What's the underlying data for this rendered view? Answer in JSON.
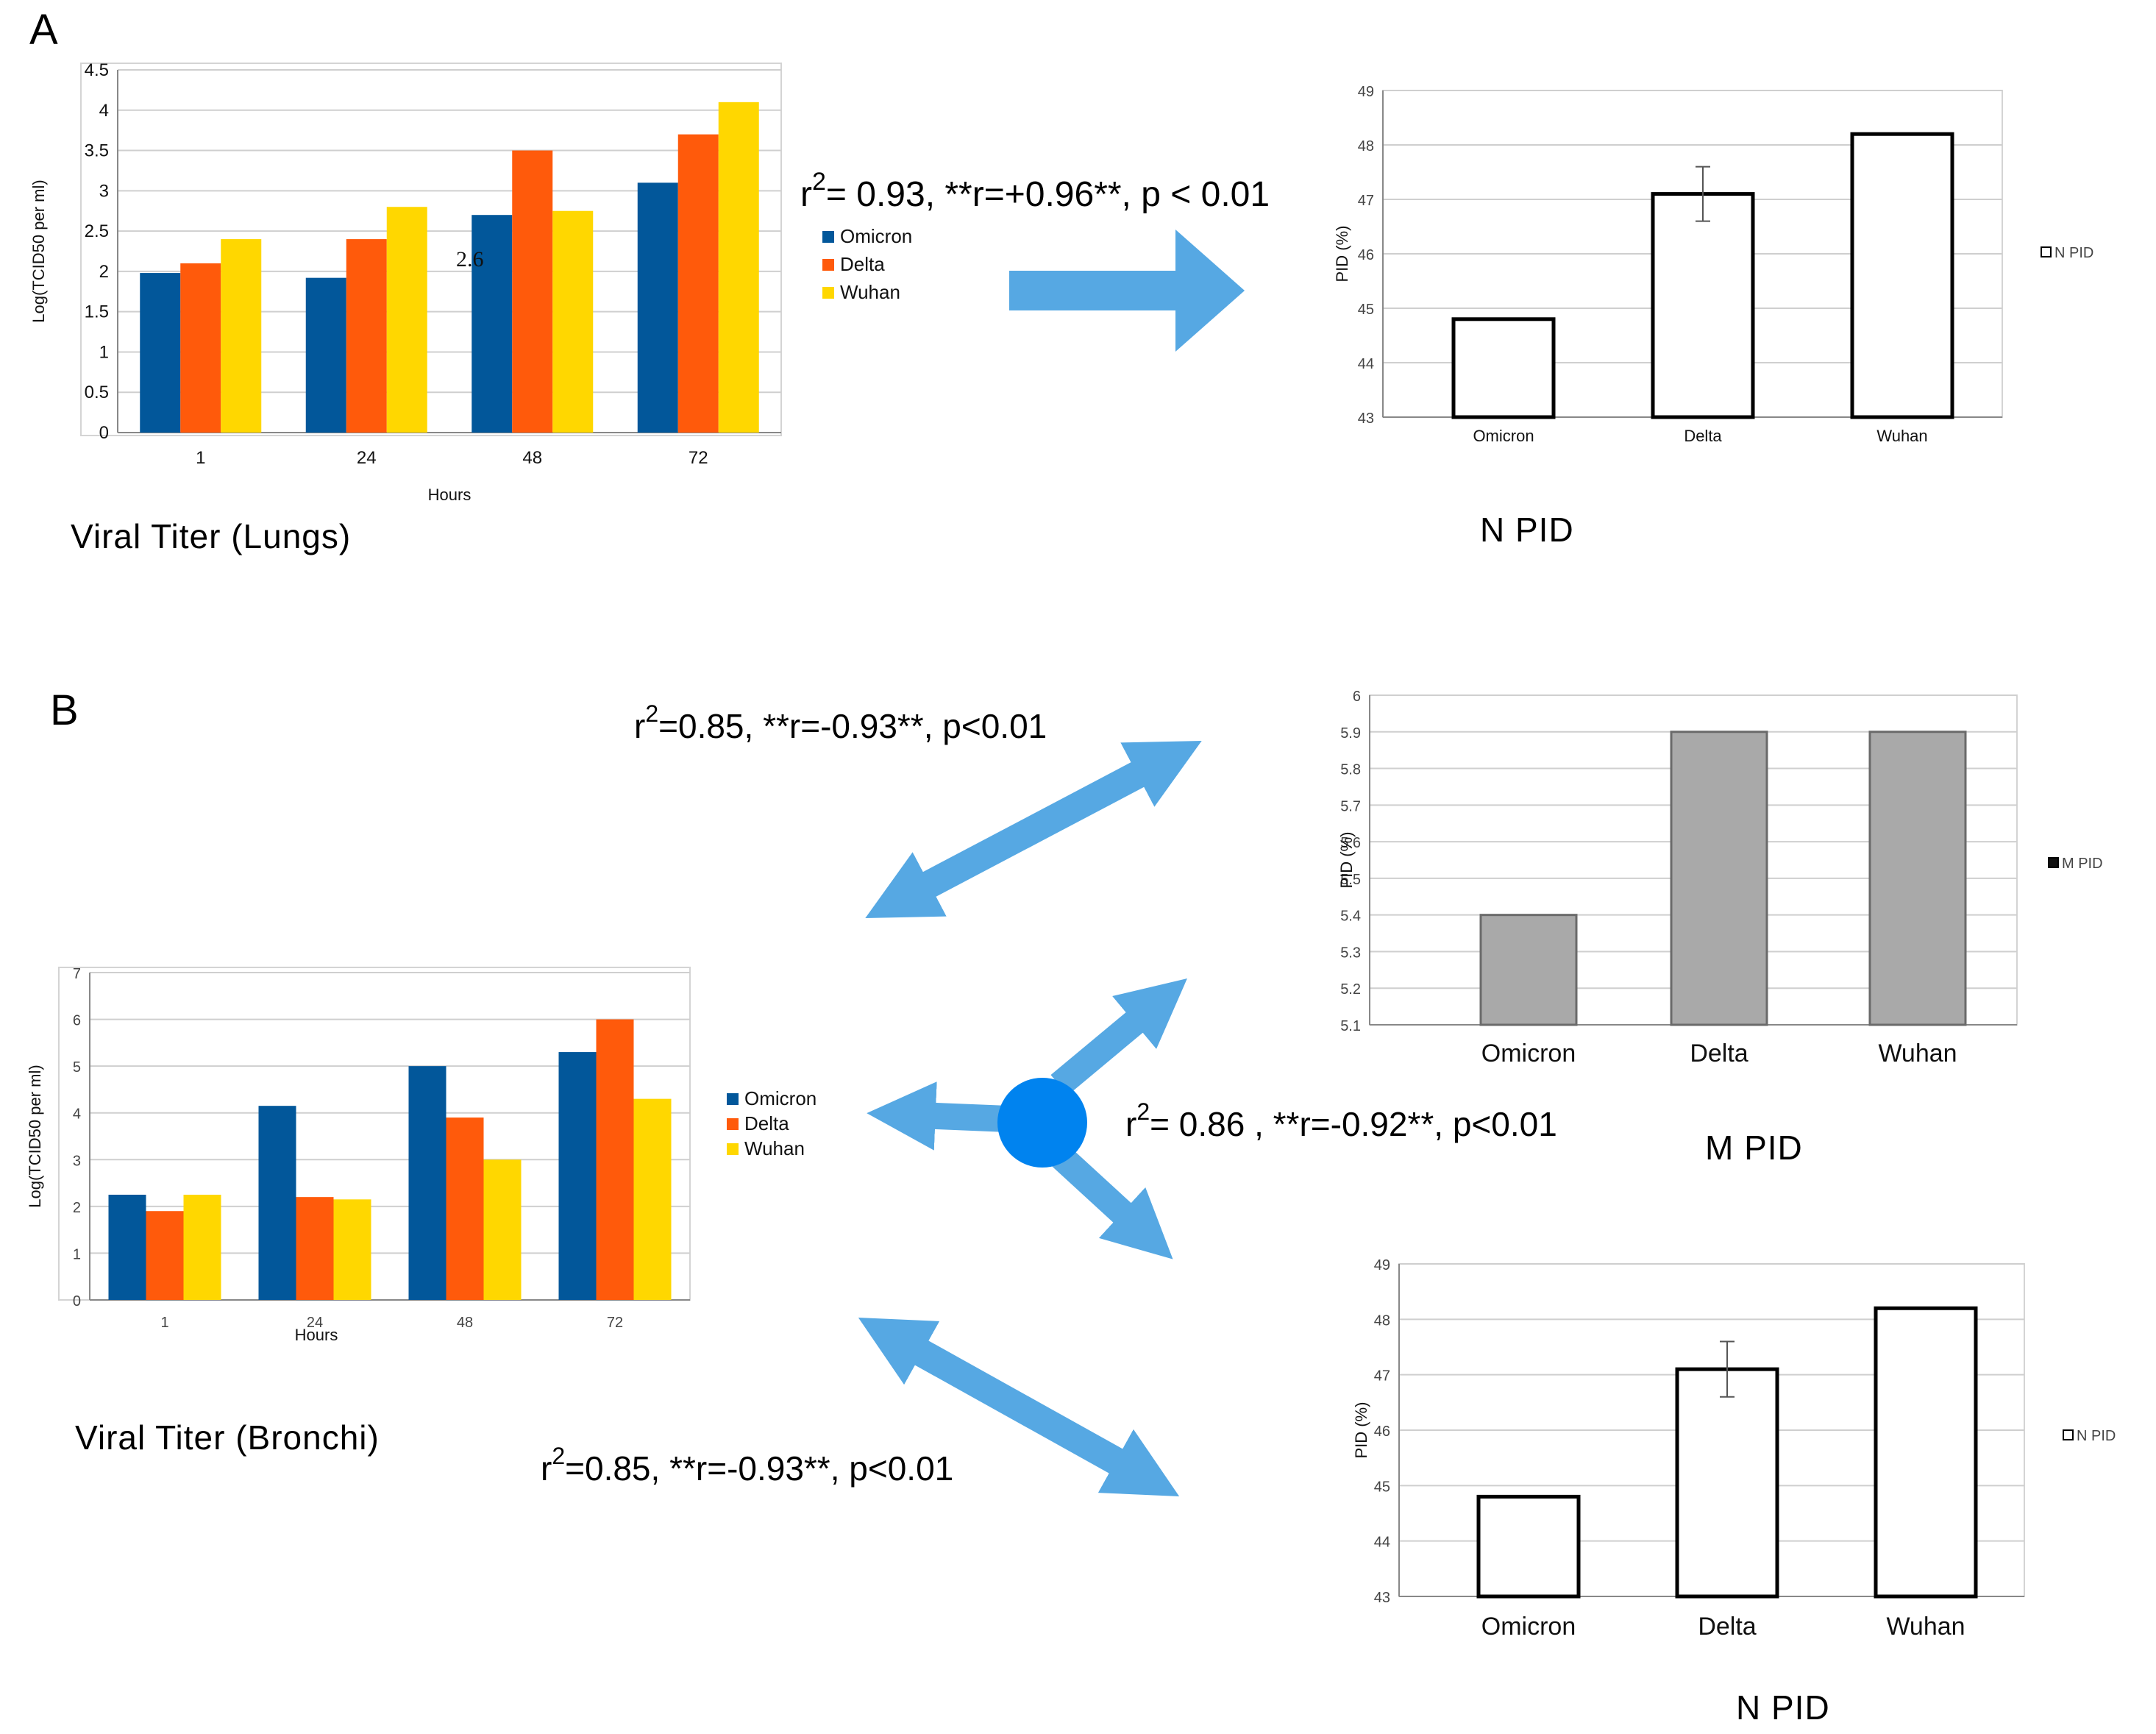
{
  "colors": {
    "omicron": "#02579a",
    "delta": "#ff5a0b",
    "wuhan": "#ffd700",
    "arrow": "#56a8e3",
    "dot": "#0083ef",
    "m_bar": "#a9a9a9"
  },
  "panel_a": {
    "letter": "A",
    "caption": "Viral Titer  (Lungs)",
    "annotation": "2.6",
    "stat": {
      "pre": "r",
      "sup": "2",
      "post": "=  0.93, **r=+0.96**,  p < 0.01"
    },
    "npid_caption": "N PID"
  },
  "panel_b": {
    "letter": "B",
    "caption": "Viral Titer (Bronchi)",
    "stat_top": {
      "pre": "r",
      "sup": "2",
      "post": "=0.85,  **r=-0.93**, p<0.01"
    },
    "stat_mid": {
      "pre": "r",
      "sup": "2",
      "post": "= 0.86 , **r=-0.92**, p<0.01"
    },
    "stat_bottom": {
      "pre": "r",
      "sup": "2",
      "post": "=0.85,  **r=-0.93**, p<0.01"
    },
    "mpid_caption": "M PID",
    "npid_caption": "N PID"
  },
  "chart_data": [
    {
      "id": "lungs",
      "type": "bar",
      "categories": [
        "1",
        "24",
        "48",
        "72"
      ],
      "series": [
        {
          "name": "Omicron",
          "values": [
            1.98,
            1.92,
            2.7,
            3.1
          ]
        },
        {
          "name": "Delta",
          "values": [
            2.1,
            2.4,
            3.5,
            3.7
          ]
        },
        {
          "name": "Wuhan",
          "values": [
            2.4,
            2.8,
            2.75,
            4.1
          ]
        }
      ],
      "yticks": [
        "0",
        "0.5",
        "1",
        "1.5",
        "2",
        "2.5",
        "3",
        "3.5",
        "4",
        "4.5"
      ],
      "ylim": [
        0,
        4.5
      ],
      "xlabel": "Hours",
      "ylabel": "Log(TCID50 per ml)",
      "legend": "right",
      "grid": true
    },
    {
      "id": "npid_top",
      "type": "bar",
      "categories": [
        "Omicron",
        "Delta",
        "Wuhan"
      ],
      "series": [
        {
          "name": "N PID",
          "values": [
            44.8,
            47.1,
            48.2
          ],
          "error": [
            0,
            0.5,
            0
          ]
        }
      ],
      "yticks": [
        "43",
        "44",
        "45",
        "46",
        "47",
        "48",
        "49"
      ],
      "ylim": [
        43,
        49
      ],
      "ylabel": "PID (%)",
      "legend": "right",
      "grid": true
    },
    {
      "id": "mpid",
      "type": "bar",
      "categories": [
        "Omicron",
        "Delta",
        "Wuhan"
      ],
      "series": [
        {
          "name": "M PID",
          "values": [
            5.4,
            5.9,
            5.9
          ]
        }
      ],
      "yticks": [
        "5.1",
        "5.2",
        "5.3",
        "5.4",
        "5.5",
        "5.6",
        "5.7",
        "5.8",
        "5.9",
        "6"
      ],
      "ylim": [
        5.1,
        6.0
      ],
      "ylabel": "PID (%)",
      "legend": "right",
      "grid": true
    },
    {
      "id": "bronchi",
      "type": "bar",
      "categories": [
        "1",
        "24",
        "48",
        "72"
      ],
      "series": [
        {
          "name": "Omicron",
          "values": [
            2.25,
            4.15,
            5.0,
            5.3
          ]
        },
        {
          "name": "Delta",
          "values": [
            1.9,
            2.2,
            3.9,
            6.0
          ]
        },
        {
          "name": "Wuhan",
          "values": [
            2.25,
            2.15,
            3.0,
            4.3
          ]
        }
      ],
      "yticks": [
        "0",
        "1",
        "2",
        "3",
        "4",
        "5",
        "6",
        "7"
      ],
      "ylim": [
        0,
        7
      ],
      "xlabel": "Hours",
      "ylabel": "Log(TCID50 per ml)",
      "legend": "right",
      "grid": true
    },
    {
      "id": "npid_bottom",
      "type": "bar",
      "categories": [
        "Omicron",
        "Delta",
        "Wuhan"
      ],
      "series": [
        {
          "name": "N PID",
          "values": [
            44.8,
            47.1,
            48.2
          ],
          "error": [
            0,
            0.5,
            0
          ]
        }
      ],
      "yticks": [
        "43",
        "44",
        "45",
        "46",
        "47",
        "48",
        "49"
      ],
      "ylim": [
        43,
        49
      ],
      "ylabel": "PID (%)",
      "legend": "right",
      "grid": true
    }
  ]
}
